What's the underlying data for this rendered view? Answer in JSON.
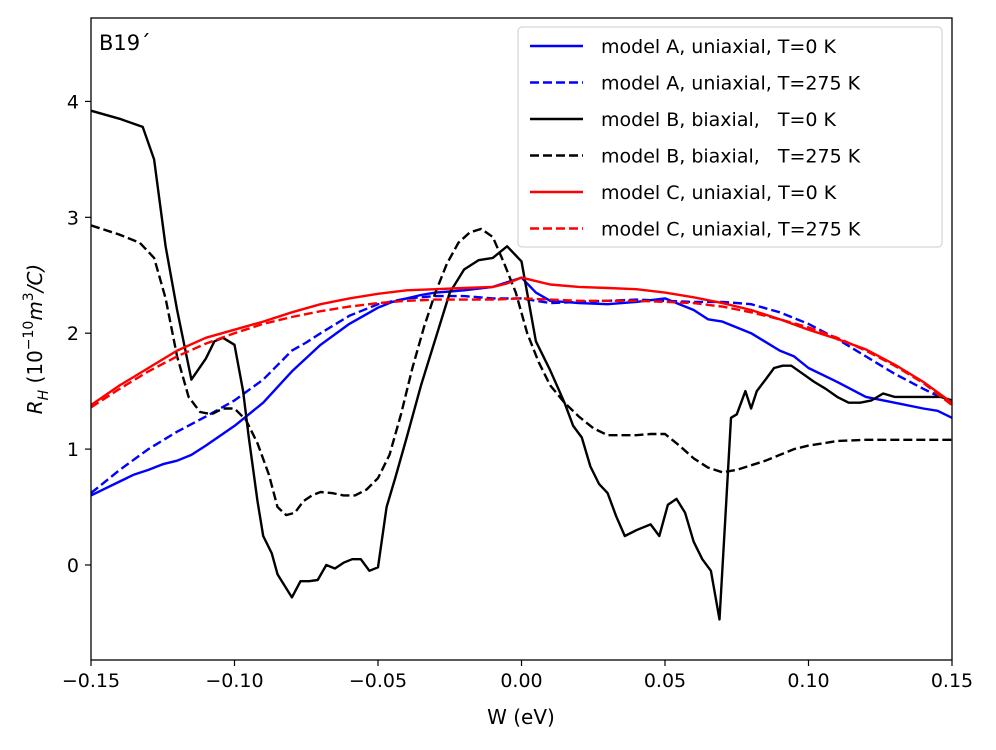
{
  "chart_data": {
    "type": "line",
    "annotation": "B19´",
    "xlabel": "W (eV)",
    "ylabel_prefix": "R",
    "ylabel_sub": "H",
    "ylabel_unit_a": " (10",
    "ylabel_sup1": "−10",
    "ylabel_unit_b": "m",
    "ylabel_sup2": "3",
    "ylabel_unit_c": "/C)",
    "xlim": [
      -0.15,
      0.15
    ],
    "ylim": [
      -0.82,
      4.72
    ],
    "xticks": [
      -0.15,
      -0.1,
      -0.05,
      0.0,
      0.05,
      0.1,
      0.15
    ],
    "xtick_labels": [
      "−0.15",
      "−0.10",
      "−0.05",
      "0.00",
      "0.05",
      "0.10",
      "0.15"
    ],
    "yticks": [
      0,
      1,
      2,
      3,
      4
    ],
    "ytick_labels": [
      "0",
      "1",
      "2",
      "3",
      "4"
    ],
    "legend_position": "top-right",
    "series": [
      {
        "name": "model A, uniaxial, T=0 K",
        "color": "#0000ff",
        "dashed": false,
        "x": [
          -0.15,
          -0.14,
          -0.135,
          -0.13,
          -0.125,
          -0.12,
          -0.115,
          -0.11,
          -0.1,
          -0.09,
          -0.08,
          -0.07,
          -0.06,
          -0.05,
          -0.045,
          -0.04,
          -0.035,
          -0.03,
          -0.025,
          -0.02,
          -0.01,
          0.0,
          0.005,
          0.01,
          0.02,
          0.03,
          0.04,
          0.05,
          0.055,
          0.06,
          0.065,
          0.07,
          0.08,
          0.09,
          0.095,
          0.1,
          0.11,
          0.12,
          0.13,
          0.14,
          0.145,
          0.15
        ],
        "y": [
          0.6,
          0.72,
          0.78,
          0.82,
          0.87,
          0.9,
          0.95,
          1.03,
          1.2,
          1.4,
          1.67,
          1.9,
          2.08,
          2.22,
          2.27,
          2.3,
          2.33,
          2.35,
          2.36,
          2.37,
          2.4,
          2.48,
          2.35,
          2.28,
          2.26,
          2.25,
          2.27,
          2.3,
          2.25,
          2.2,
          2.12,
          2.1,
          2.0,
          1.85,
          1.8,
          1.7,
          1.58,
          1.45,
          1.4,
          1.35,
          1.33,
          1.27
        ]
      },
      {
        "name": "model A, uniaxial, T=275 K",
        "color": "#0000ff",
        "dashed": true,
        "x": [
          -0.15,
          -0.14,
          -0.13,
          -0.12,
          -0.11,
          -0.1,
          -0.09,
          -0.08,
          -0.075,
          -0.07,
          -0.06,
          -0.05,
          -0.04,
          -0.03,
          -0.02,
          -0.01,
          0.0,
          0.01,
          0.02,
          0.03,
          0.04,
          0.05,
          0.06,
          0.07,
          0.08,
          0.09,
          0.1,
          0.11,
          0.12,
          0.13,
          0.14,
          0.15
        ],
        "y": [
          0.62,
          0.82,
          1.0,
          1.15,
          1.28,
          1.42,
          1.6,
          1.85,
          1.92,
          2.0,
          2.15,
          2.25,
          2.3,
          2.32,
          2.32,
          2.3,
          2.3,
          2.26,
          2.27,
          2.28,
          2.29,
          2.28,
          2.27,
          2.27,
          2.25,
          2.18,
          2.08,
          1.95,
          1.8,
          1.65,
          1.52,
          1.4
        ]
      },
      {
        "name": "model B, biaxial,   T=0 K",
        "color": "#000000",
        "dashed": false,
        "x": [
          -0.15,
          -0.14,
          -0.132,
          -0.128,
          -0.124,
          -0.12,
          -0.115,
          -0.11,
          -0.107,
          -0.104,
          -0.1,
          -0.097,
          -0.095,
          -0.092,
          -0.09,
          -0.087,
          -0.085,
          -0.082,
          -0.08,
          -0.077,
          -0.074,
          -0.071,
          -0.068,
          -0.065,
          -0.062,
          -0.059,
          -0.056,
          -0.053,
          -0.05,
          -0.047,
          -0.044,
          -0.04,
          -0.035,
          -0.03,
          -0.025,
          -0.02,
          -0.015,
          -0.01,
          -0.005,
          0.0,
          0.005,
          0.01,
          0.015,
          0.018,
          0.021,
          0.024,
          0.027,
          0.03,
          0.033,
          0.036,
          0.04,
          0.045,
          0.048,
          0.051,
          0.054,
          0.057,
          0.06,
          0.063,
          0.066,
          0.069,
          0.071,
          0.073,
          0.075,
          0.078,
          0.08,
          0.082,
          0.085,
          0.088,
          0.091,
          0.094,
          0.098,
          0.102,
          0.106,
          0.11,
          0.114,
          0.118,
          0.122,
          0.126,
          0.13,
          0.134,
          0.138,
          0.142,
          0.146,
          0.15
        ],
        "y": [
          3.92,
          3.85,
          3.78,
          3.5,
          2.75,
          2.2,
          1.6,
          1.78,
          1.93,
          1.96,
          1.9,
          1.5,
          1.1,
          0.55,
          0.25,
          0.1,
          -0.08,
          -0.2,
          -0.28,
          -0.14,
          -0.14,
          -0.13,
          0.0,
          -0.03,
          0.02,
          0.05,
          0.05,
          -0.05,
          -0.02,
          0.5,
          0.75,
          1.1,
          1.55,
          1.95,
          2.35,
          2.55,
          2.63,
          2.65,
          2.75,
          2.62,
          1.93,
          1.68,
          1.4,
          1.2,
          1.1,
          0.85,
          0.7,
          0.62,
          0.42,
          0.25,
          0.3,
          0.35,
          0.25,
          0.52,
          0.57,
          0.45,
          0.2,
          0.05,
          -0.05,
          -0.47,
          0.4,
          1.27,
          1.3,
          1.5,
          1.35,
          1.5,
          1.6,
          1.7,
          1.72,
          1.72,
          1.65,
          1.58,
          1.52,
          1.45,
          1.4,
          1.4,
          1.42,
          1.48,
          1.45,
          1.45,
          1.45,
          1.45,
          1.45,
          1.42
        ]
      },
      {
        "name": "model B, biaxial,   T=275 K",
        "color": "#000000",
        "dashed": true,
        "x": [
          -0.15,
          -0.14,
          -0.133,
          -0.128,
          -0.124,
          -0.12,
          -0.116,
          -0.112,
          -0.108,
          -0.104,
          -0.1,
          -0.096,
          -0.092,
          -0.088,
          -0.085,
          -0.082,
          -0.079,
          -0.076,
          -0.073,
          -0.07,
          -0.066,
          -0.062,
          -0.058,
          -0.054,
          -0.05,
          -0.046,
          -0.042,
          -0.038,
          -0.034,
          -0.03,
          -0.026,
          -0.022,
          -0.018,
          -0.014,
          -0.01,
          -0.006,
          -0.002,
          0.002,
          0.006,
          0.01,
          0.015,
          0.02,
          0.025,
          0.03,
          0.035,
          0.04,
          0.045,
          0.05,
          0.055,
          0.06,
          0.065,
          0.07,
          0.075,
          0.08,
          0.085,
          0.09,
          0.095,
          0.1,
          0.11,
          0.12,
          0.13,
          0.14,
          0.15
        ],
        "y": [
          2.93,
          2.85,
          2.78,
          2.65,
          2.3,
          1.8,
          1.45,
          1.32,
          1.3,
          1.35,
          1.35,
          1.25,
          1.05,
          0.78,
          0.5,
          0.43,
          0.45,
          0.55,
          0.6,
          0.63,
          0.62,
          0.6,
          0.6,
          0.65,
          0.75,
          0.95,
          1.3,
          1.7,
          2.05,
          2.35,
          2.6,
          2.78,
          2.87,
          2.9,
          2.83,
          2.6,
          2.35,
          2.0,
          1.75,
          1.55,
          1.4,
          1.28,
          1.18,
          1.12,
          1.12,
          1.12,
          1.13,
          1.13,
          1.03,
          0.92,
          0.84,
          0.8,
          0.82,
          0.86,
          0.9,
          0.95,
          1.0,
          1.03,
          1.07,
          1.08,
          1.08,
          1.08,
          1.08
        ]
      },
      {
        "name": "model C, uniaxial, T=0 K",
        "color": "#ff0000",
        "dashed": false,
        "x": [
          -0.15,
          -0.14,
          -0.13,
          -0.12,
          -0.11,
          -0.1,
          -0.09,
          -0.08,
          -0.07,
          -0.06,
          -0.05,
          -0.04,
          -0.03,
          -0.02,
          -0.01,
          -0.005,
          0.0,
          0.005,
          0.01,
          0.02,
          0.03,
          0.04,
          0.05,
          0.06,
          0.07,
          0.08,
          0.09,
          0.1,
          0.11,
          0.12,
          0.13,
          0.14,
          0.15
        ],
        "y": [
          1.38,
          1.55,
          1.7,
          1.85,
          1.96,
          2.03,
          2.1,
          2.18,
          2.25,
          2.3,
          2.34,
          2.37,
          2.38,
          2.39,
          2.4,
          2.43,
          2.48,
          2.45,
          2.42,
          2.4,
          2.39,
          2.38,
          2.35,
          2.31,
          2.26,
          2.2,
          2.12,
          2.03,
          1.95,
          1.86,
          1.73,
          1.58,
          1.4
        ]
      },
      {
        "name": "model C, uniaxial, T=275 K",
        "color": "#ff0000",
        "dashed": true,
        "x": [
          -0.15,
          -0.14,
          -0.13,
          -0.12,
          -0.11,
          -0.1,
          -0.09,
          -0.08,
          -0.07,
          -0.06,
          -0.05,
          -0.04,
          -0.03,
          -0.02,
          -0.01,
          0.0,
          0.01,
          0.02,
          0.03,
          0.04,
          0.05,
          0.06,
          0.07,
          0.08,
          0.09,
          0.1,
          0.11,
          0.12,
          0.13,
          0.14,
          0.15
        ],
        "y": [
          1.36,
          1.52,
          1.67,
          1.8,
          1.91,
          2.0,
          2.08,
          2.14,
          2.19,
          2.23,
          2.26,
          2.28,
          2.29,
          2.29,
          2.29,
          2.3,
          2.29,
          2.28,
          2.28,
          2.28,
          2.27,
          2.26,
          2.23,
          2.18,
          2.12,
          2.05,
          1.96,
          1.85,
          1.72,
          1.57,
          1.38
        ]
      }
    ]
  }
}
